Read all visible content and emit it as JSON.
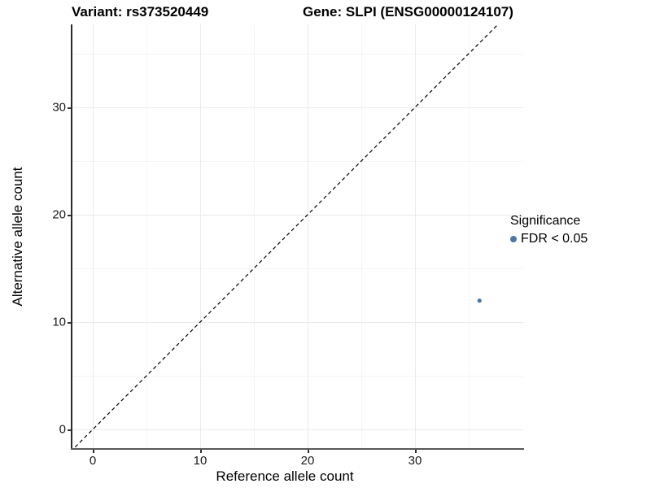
{
  "titles": {
    "variant": "Variant: rs373520449",
    "gene": "Gene: SLPI (ENSG00000124107)"
  },
  "axes": {
    "x_label": "Reference allele count",
    "y_label": "Alternative allele count"
  },
  "legend": {
    "title": "Significance",
    "items": [
      {
        "label": "FDR < 0.05",
        "color": "#4c78a8"
      }
    ]
  },
  "chart_data": {
    "type": "scatter",
    "title": "Variant: rs373520449   Gene: SLPI (ENSG00000124107)",
    "xlabel": "Reference allele count",
    "ylabel": "Alternative allele count",
    "x_ticks": [
      0,
      10,
      20,
      30
    ],
    "y_ticks": [
      0,
      10,
      20,
      30
    ],
    "x_minor_ticks": [
      5,
      15,
      25,
      35
    ],
    "y_minor_ticks": [
      5,
      15,
      25,
      35
    ],
    "xlim": [
      -2,
      40
    ],
    "ylim": [
      -1.8,
      37.8
    ],
    "grid": true,
    "legend_position": "right",
    "reference_line": {
      "kind": "identity y = x",
      "style": "dashed",
      "color": "#000000"
    },
    "series": [
      {
        "name": "FDR < 0.05",
        "color": "#4c78a8",
        "points": [
          {
            "x": 36,
            "y": 12
          }
        ]
      }
    ]
  }
}
